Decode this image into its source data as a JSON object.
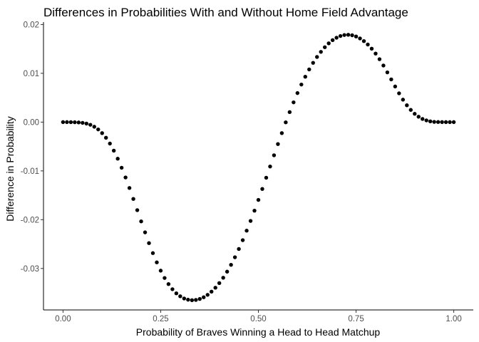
{
  "chart_data": {
    "type": "scatter",
    "title": "Differences in Probabilities With and Without Home Field Advantage",
    "xlabel": "Probability of Braves Winning a Head to Head Matchup",
    "ylabel": "Difference in Probability",
    "xlim": [
      -0.05,
      1.05
    ],
    "ylim": [
      -0.0385,
      0.0205
    ],
    "x_ticks": [
      0.0,
      0.25,
      0.5,
      0.75,
      1.0
    ],
    "x_tick_labels": [
      "0.00",
      "0.25",
      "0.50",
      "0.75",
      "1.00"
    ],
    "y_ticks": [
      0.02,
      0.01,
      0.0,
      -0.01,
      -0.02,
      -0.03
    ],
    "y_tick_labels": [
      "0.02",
      "0.01",
      "0.00",
      "-0.01",
      "-0.02",
      "-0.03"
    ],
    "grid": false,
    "point_color": "#000000",
    "x": [
      0.0,
      0.01,
      0.02,
      0.03,
      0.04,
      0.05,
      0.06,
      0.07,
      0.08,
      0.09,
      0.1,
      0.11,
      0.12,
      0.13,
      0.14,
      0.15,
      0.16,
      0.17,
      0.18,
      0.19,
      0.2,
      0.21,
      0.22,
      0.23,
      0.24,
      0.25,
      0.26,
      0.27,
      0.28,
      0.29,
      0.3,
      0.31,
      0.32,
      0.33,
      0.34,
      0.35,
      0.36,
      0.37,
      0.38,
      0.39,
      0.4,
      0.41,
      0.42,
      0.43,
      0.44,
      0.45,
      0.46,
      0.47,
      0.48,
      0.49,
      0.5,
      0.51,
      0.52,
      0.53,
      0.54,
      0.55,
      0.56,
      0.57,
      0.58,
      0.59,
      0.6,
      0.61,
      0.62,
      0.63,
      0.64,
      0.65,
      0.66,
      0.67,
      0.68,
      0.69,
      0.7,
      0.71,
      0.72,
      0.73,
      0.74,
      0.75,
      0.76,
      0.77,
      0.78,
      0.79,
      0.8,
      0.81,
      0.82,
      0.83,
      0.84,
      0.85,
      0.86,
      0.87,
      0.88,
      0.89,
      0.9,
      0.91,
      0.92,
      0.93,
      0.94,
      0.95,
      0.96,
      0.97,
      0.98,
      0.99,
      1.0
    ],
    "y": [
      0.0,
      0.0,
      -1e-05,
      -3e-05,
      -7e-05,
      -0.00015,
      -0.0003,
      -0.00055,
      -0.00095,
      -0.0015,
      -0.00225,
      -0.0032,
      -0.0044,
      -0.00585,
      -0.0075,
      -0.00935,
      -0.01135,
      -0.0135,
      -0.01575,
      -0.01805,
      -0.02035,
      -0.0226,
      -0.0248,
      -0.02685,
      -0.02875,
      -0.03045,
      -0.03195,
      -0.0332,
      -0.03425,
      -0.0351,
      -0.0357,
      -0.03615,
      -0.0364,
      -0.0365,
      -0.03645,
      -0.03625,
      -0.0359,
      -0.0354,
      -0.03475,
      -0.03395,
      -0.033,
      -0.0319,
      -0.03065,
      -0.02925,
      -0.0277,
      -0.026,
      -0.0242,
      -0.02225,
      -0.02025,
      -0.01815,
      -0.01595,
      -0.0137,
      -0.0114,
      -0.0091,
      -0.0068,
      -0.0045,
      -0.00225,
      -5e-05,
      0.00205,
      0.00405,
      0.00595,
      0.0077,
      0.0093,
      0.0108,
      0.01215,
      0.01335,
      0.0144,
      0.01535,
      0.01615,
      0.0168,
      0.0173,
      0.01765,
      0.01785,
      0.0179,
      0.0178,
      0.01755,
      0.01715,
      0.0166,
      0.0159,
      0.01505,
      0.01405,
      0.0129,
      0.0116,
      0.0102,
      0.00875,
      0.0073,
      0.0059,
      0.0046,
      0.00345,
      0.0025,
      0.0017,
      0.0011,
      0.00065,
      0.00035,
      0.00015,
      5e-05,
      2e-05,
      1e-05,
      0.0,
      0.0,
      0.0
    ]
  }
}
